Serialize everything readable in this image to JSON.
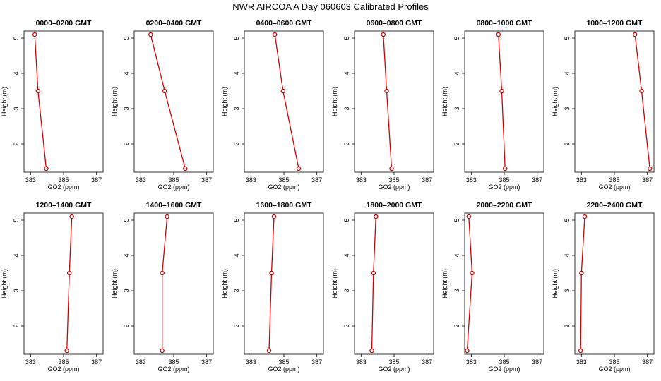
{
  "figure_title": "NWR AIRCOA A  Day 060603  Calibrated Profiles",
  "colors": {
    "series": "#d40000",
    "axes": "#000000",
    "background": "#ffffff"
  },
  "chart_data": [
    {
      "type": "line",
      "title": "0000–0200 GMT",
      "xlabel": "GO2 (ppm)",
      "ylabel": "Height (m)",
      "xlim": [
        382.6,
        387.4
      ],
      "ylim": [
        1.2,
        5.2
      ],
      "xticks": [
        "383",
        "385",
        "387"
      ],
      "yticks": [
        "2",
        "3",
        "4",
        "5"
      ],
      "x": [
        383.25,
        383.45,
        383.95
      ],
      "y": [
        5.1,
        3.5,
        1.3
      ]
    },
    {
      "type": "line",
      "title": "0200–0400 GMT",
      "xlabel": "GO2 (ppm)",
      "ylabel": "Height (m)",
      "xlim": [
        382.6,
        387.4
      ],
      "ylim": [
        1.2,
        5.2
      ],
      "xticks": [
        "383",
        "385",
        "387"
      ],
      "yticks": [
        "2",
        "3",
        "4",
        "5"
      ],
      "x": [
        383.6,
        384.45,
        385.7
      ],
      "y": [
        5.1,
        3.5,
        1.3
      ]
    },
    {
      "type": "line",
      "title": "0400–0600 GMT",
      "xlabel": "GO2 (ppm)",
      "ylabel": "Height (m)",
      "xlim": [
        382.6,
        387.4
      ],
      "ylim": [
        1.2,
        5.2
      ],
      "xticks": [
        "383",
        "385",
        "387"
      ],
      "yticks": [
        "2",
        "3",
        "4",
        "5"
      ],
      "x": [
        384.45,
        384.95,
        385.9
      ],
      "y": [
        5.1,
        3.5,
        1.3
      ]
    },
    {
      "type": "line",
      "title": "0600–0800 GMT",
      "xlabel": "GO2 (ppm)",
      "ylabel": "Height (m)",
      "xlim": [
        382.6,
        387.4
      ],
      "ylim": [
        1.2,
        5.2
      ],
      "xticks": [
        "383",
        "385",
        "387"
      ],
      "yticks": [
        "2",
        "3",
        "4",
        "5"
      ],
      "x": [
        384.35,
        384.55,
        384.85
      ],
      "y": [
        5.1,
        3.5,
        1.3
      ]
    },
    {
      "type": "line",
      "title": "0800–1000 GMT",
      "xlabel": "GO2 (ppm)",
      "ylabel": "Height (m)",
      "xlim": [
        382.6,
        387.4
      ],
      "ylim": [
        1.2,
        5.2
      ],
      "xticks": [
        "383",
        "385",
        "387"
      ],
      "yticks": [
        "2",
        "3",
        "4",
        "5"
      ],
      "x": [
        384.65,
        384.85,
        385.05
      ],
      "y": [
        5.1,
        3.5,
        1.3
      ]
    },
    {
      "type": "line",
      "title": "1000–1200 GMT",
      "xlabel": "GO2 (ppm)",
      "ylabel": "Height (m)",
      "xlim": [
        382.6,
        387.4
      ],
      "ylim": [
        1.2,
        5.2
      ],
      "xticks": [
        "383",
        "385",
        "387"
      ],
      "yticks": [
        "2",
        "3",
        "4",
        "5"
      ],
      "x": [
        386.25,
        386.65,
        387.15
      ],
      "y": [
        5.1,
        3.5,
        1.3
      ]
    },
    {
      "type": "line",
      "title": "1200–1400 GMT",
      "xlabel": "GO2 (ppm)",
      "ylabel": "Height (m)",
      "xlim": [
        382.6,
        387.4
      ],
      "ylim": [
        1.2,
        5.2
      ],
      "xticks": [
        "383",
        "385",
        "387"
      ],
      "yticks": [
        "2",
        "3",
        "4",
        "5"
      ],
      "x": [
        385.5,
        385.35,
        385.2
      ],
      "y": [
        5.1,
        3.5,
        1.3
      ]
    },
    {
      "type": "line",
      "title": "1400–1600 GMT",
      "xlabel": "GO2 (ppm)",
      "ylabel": "Height (m)",
      "xlim": [
        382.6,
        387.4
      ],
      "ylim": [
        1.2,
        5.2
      ],
      "xticks": [
        "383",
        "385",
        "387"
      ],
      "yticks": [
        "2",
        "3",
        "4",
        "5"
      ],
      "x": [
        384.6,
        384.3,
        384.3
      ],
      "y": [
        5.1,
        3.5,
        1.3
      ]
    },
    {
      "type": "line",
      "title": "1600–1800 GMT",
      "xlabel": "GO2 (ppm)",
      "ylabel": "Height (m)",
      "xlim": [
        382.6,
        387.4
      ],
      "ylim": [
        1.2,
        5.2
      ],
      "xticks": [
        "383",
        "385",
        "387"
      ],
      "yticks": [
        "2",
        "3",
        "4",
        "5"
      ],
      "x": [
        384.4,
        384.25,
        384.1
      ],
      "y": [
        5.1,
        3.5,
        1.3
      ]
    },
    {
      "type": "line",
      "title": "1800–2000 GMT",
      "xlabel": "GO2 (ppm)",
      "ylabel": "Height (m)",
      "xlim": [
        382.6,
        387.4
      ],
      "ylim": [
        1.2,
        5.2
      ],
      "xticks": [
        "383",
        "385",
        "387"
      ],
      "yticks": [
        "2",
        "3",
        "4",
        "5"
      ],
      "x": [
        383.9,
        383.75,
        383.65
      ],
      "y": [
        5.1,
        3.5,
        1.3
      ]
    },
    {
      "type": "line",
      "title": "2000–2200 GMT",
      "xlabel": "GO2 (ppm)",
      "ylabel": "Height (m)",
      "xlim": [
        382.6,
        387.4
      ],
      "ylim": [
        1.2,
        5.2
      ],
      "xticks": [
        "383",
        "385",
        "387"
      ],
      "yticks": [
        "2",
        "3",
        "4",
        "5"
      ],
      "x": [
        382.85,
        383.05,
        382.75
      ],
      "y": [
        5.1,
        3.5,
        1.3
      ]
    },
    {
      "type": "line",
      "title": "2200–2400 GMT",
      "xlabel": "GO2 (ppm)",
      "ylabel": "Height (m)",
      "xlim": [
        382.6,
        387.4
      ],
      "ylim": [
        1.2,
        5.2
      ],
      "xticks": [
        "383",
        "385",
        "387"
      ],
      "yticks": [
        "2",
        "3",
        "4",
        "5"
      ],
      "x": [
        383.2,
        383.0,
        382.95
      ],
      "y": [
        5.1,
        3.5,
        1.3
      ]
    }
  ]
}
